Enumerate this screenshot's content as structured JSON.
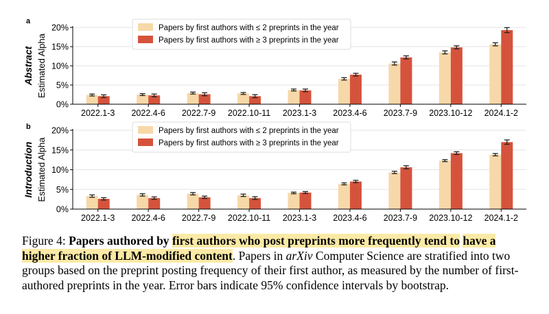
{
  "chart_data": [
    {
      "type": "bar",
      "panel": "a",
      "row_label": "Abstract",
      "ylabel": "Estimated Alpha",
      "yticks": [
        "0%",
        "5%",
        "10%",
        "15%",
        "20%"
      ],
      "ylim": [
        0,
        20
      ],
      "grid": true,
      "legend_placement": "top-left",
      "categories": [
        "2022.1-3",
        "2022.4-6",
        "2022.7-9",
        "2022.10-11",
        "2023.1-3",
        "2023.4-6",
        "2023.7-9",
        "2023.10-12",
        "2024.1-2"
      ],
      "series": [
        {
          "name": "Papers by first authors with ≤ 2 preprints in the year",
          "color": "#f7d8a8",
          "values": [
            2.4,
            2.5,
            2.9,
            2.8,
            3.7,
            6.6,
            10.6,
            13.5,
            15.6
          ],
          "err": [
            0.25,
            0.25,
            0.25,
            0.25,
            0.25,
            0.3,
            0.4,
            0.4,
            0.4
          ]
        },
        {
          "name": "Papers by first authors with ≥ 3 preprints in the year",
          "color": "#d5533c",
          "values": [
            2.1,
            2.3,
            2.6,
            2.1,
            3.6,
            7.7,
            12.2,
            14.8,
            19.3
          ],
          "err": [
            0.35,
            0.35,
            0.4,
            0.4,
            0.35,
            0.35,
            0.4,
            0.4,
            0.65
          ]
        }
      ]
    },
    {
      "type": "bar",
      "panel": "b",
      "row_label": "Introduction",
      "ylabel": "Estimated Alpha",
      "yticks": [
        "0%",
        "5%",
        "10%",
        "15%",
        "20%"
      ],
      "ylim": [
        0,
        20
      ],
      "grid": true,
      "legend_placement": "top-left",
      "categories": [
        "2022.1-3",
        "2022.4-6",
        "2022.7-9",
        "2022.10-11",
        "2023.1-3",
        "2023.4-6",
        "2023.7-9",
        "2023.10-12",
        "2024.1-2"
      ],
      "series": [
        {
          "name": "Papers by first authors with ≤ 2 preprints in the year",
          "color": "#f7d8a8",
          "values": [
            3.3,
            3.6,
            3.9,
            3.5,
            4.1,
            6.4,
            9.3,
            12.3,
            13.8
          ],
          "err": [
            0.3,
            0.3,
            0.3,
            0.3,
            0.2,
            0.25,
            0.3,
            0.25,
            0.3
          ]
        },
        {
          "name": "Papers by first authors with ≥ 3 preprints in the year",
          "color": "#d5533c",
          "values": [
            2.6,
            2.8,
            3.0,
            2.8,
            4.2,
            7.0,
            10.6,
            14.2,
            17.0
          ],
          "err": [
            0.3,
            0.3,
            0.3,
            0.35,
            0.25,
            0.3,
            0.4,
            0.35,
            0.55
          ]
        }
      ]
    }
  ],
  "caption": {
    "figure_label": "Figure 4:",
    "bold_plain": "Papers authored by",
    "bold_highlight_1": "first authors who post preprints more frequently tend to",
    "bold_highlight_2": "have a higher fraction of LLM-modified content",
    "period": ".",
    "text_1": "Papers in",
    "italic": "arXiv",
    "text_2": "Computer Science are stratified into two groups based on the preprint posting frequency of their first author, as measured by the number of first-authored preprints in the year. Error bars indicate 95% confidence intervals by bootstrap."
  }
}
